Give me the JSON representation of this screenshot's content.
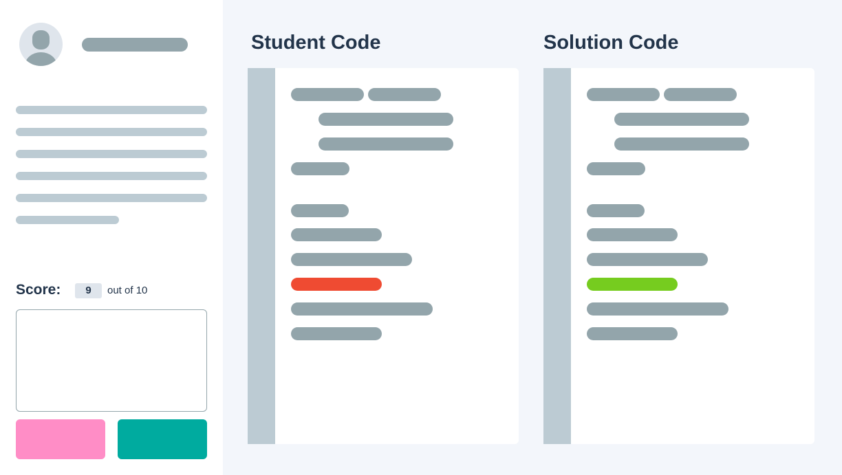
{
  "student": {
    "avatar_icon": "user-avatar-icon"
  },
  "score": {
    "label": "Score:",
    "value": "9",
    "suffix": "out of 10"
  },
  "buttons": {
    "reject_color": "#ff8dc6",
    "accept_color": "#00ab9f"
  },
  "panels": [
    {
      "title": "Student Code",
      "highlight_color": "#ef4b32",
      "highlight_status": "incorrect"
    },
    {
      "title": "Solution Code",
      "highlight_color": "#76cc1f",
      "highlight_status": "correct"
    }
  ]
}
